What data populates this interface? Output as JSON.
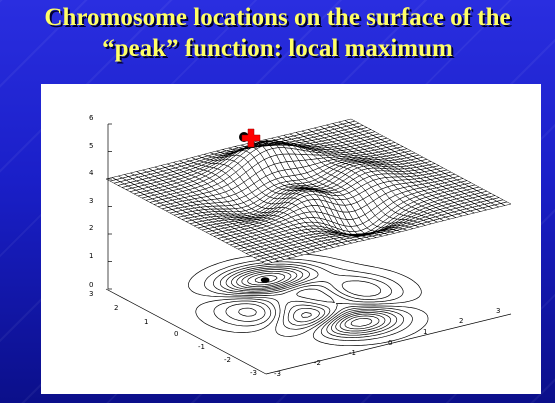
{
  "slide": {
    "title_line1": "Chromosome locations on the surface of the",
    "title_line2": "“peak” function: local maximum"
  },
  "plot": {
    "z_ticks": [
      "0",
      "1",
      "2",
      "3",
      "4",
      "5",
      "6"
    ],
    "y_ticks": [
      "3",
      "2",
      "1",
      "0",
      "-1",
      "-2",
      "-3"
    ],
    "x_ticks": [
      "-3",
      "-2",
      "-1",
      "0",
      "1",
      "2",
      "3"
    ],
    "colors": {
      "marker": "#ff0000",
      "title": "#ffff66"
    }
  }
}
